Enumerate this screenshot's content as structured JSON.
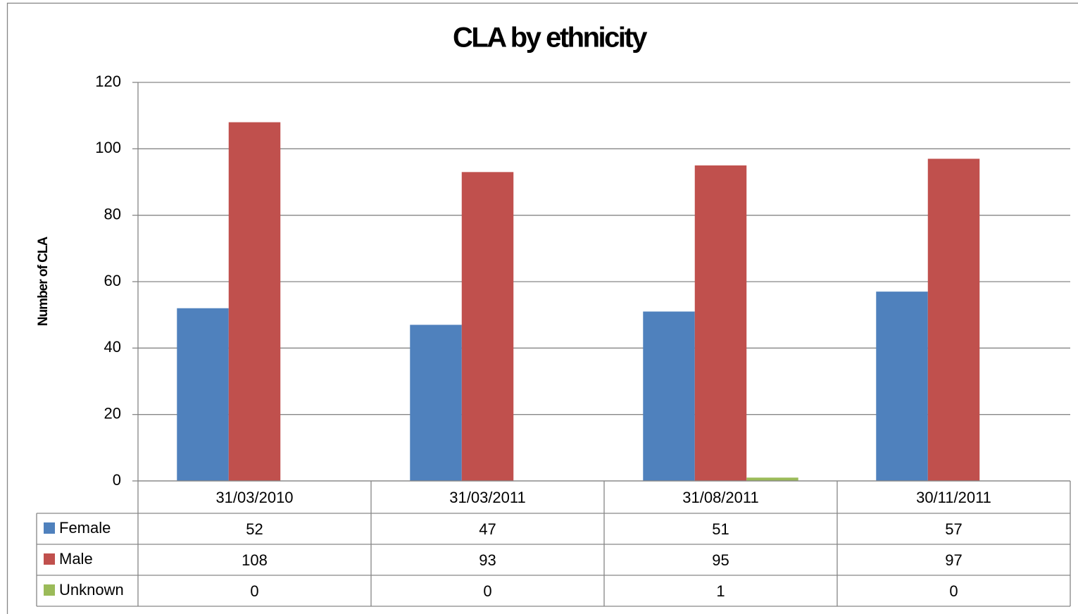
{
  "chart_data": {
    "type": "bar",
    "title": "CLA by ethnicity",
    "y_label": "Number of CLA",
    "categories": [
      "31/03/2010",
      "31/03/2011",
      "31/08/2011",
      "30/11/2011"
    ],
    "series": [
      {
        "name": "Female",
        "color": "#4f81bd",
        "values": [
          52,
          47,
          51,
          57
        ]
      },
      {
        "name": "Male",
        "color": "#c0504d",
        "values": [
          108,
          93,
          95,
          97
        ]
      },
      {
        "name": "Unknown",
        "color": "#9bbb59",
        "values": [
          0,
          0,
          1,
          0
        ]
      }
    ],
    "ylim": [
      0,
      120
    ],
    "yticks": [
      0,
      20,
      40,
      60,
      80,
      100,
      120
    ],
    "grid": true,
    "data_table": true
  }
}
